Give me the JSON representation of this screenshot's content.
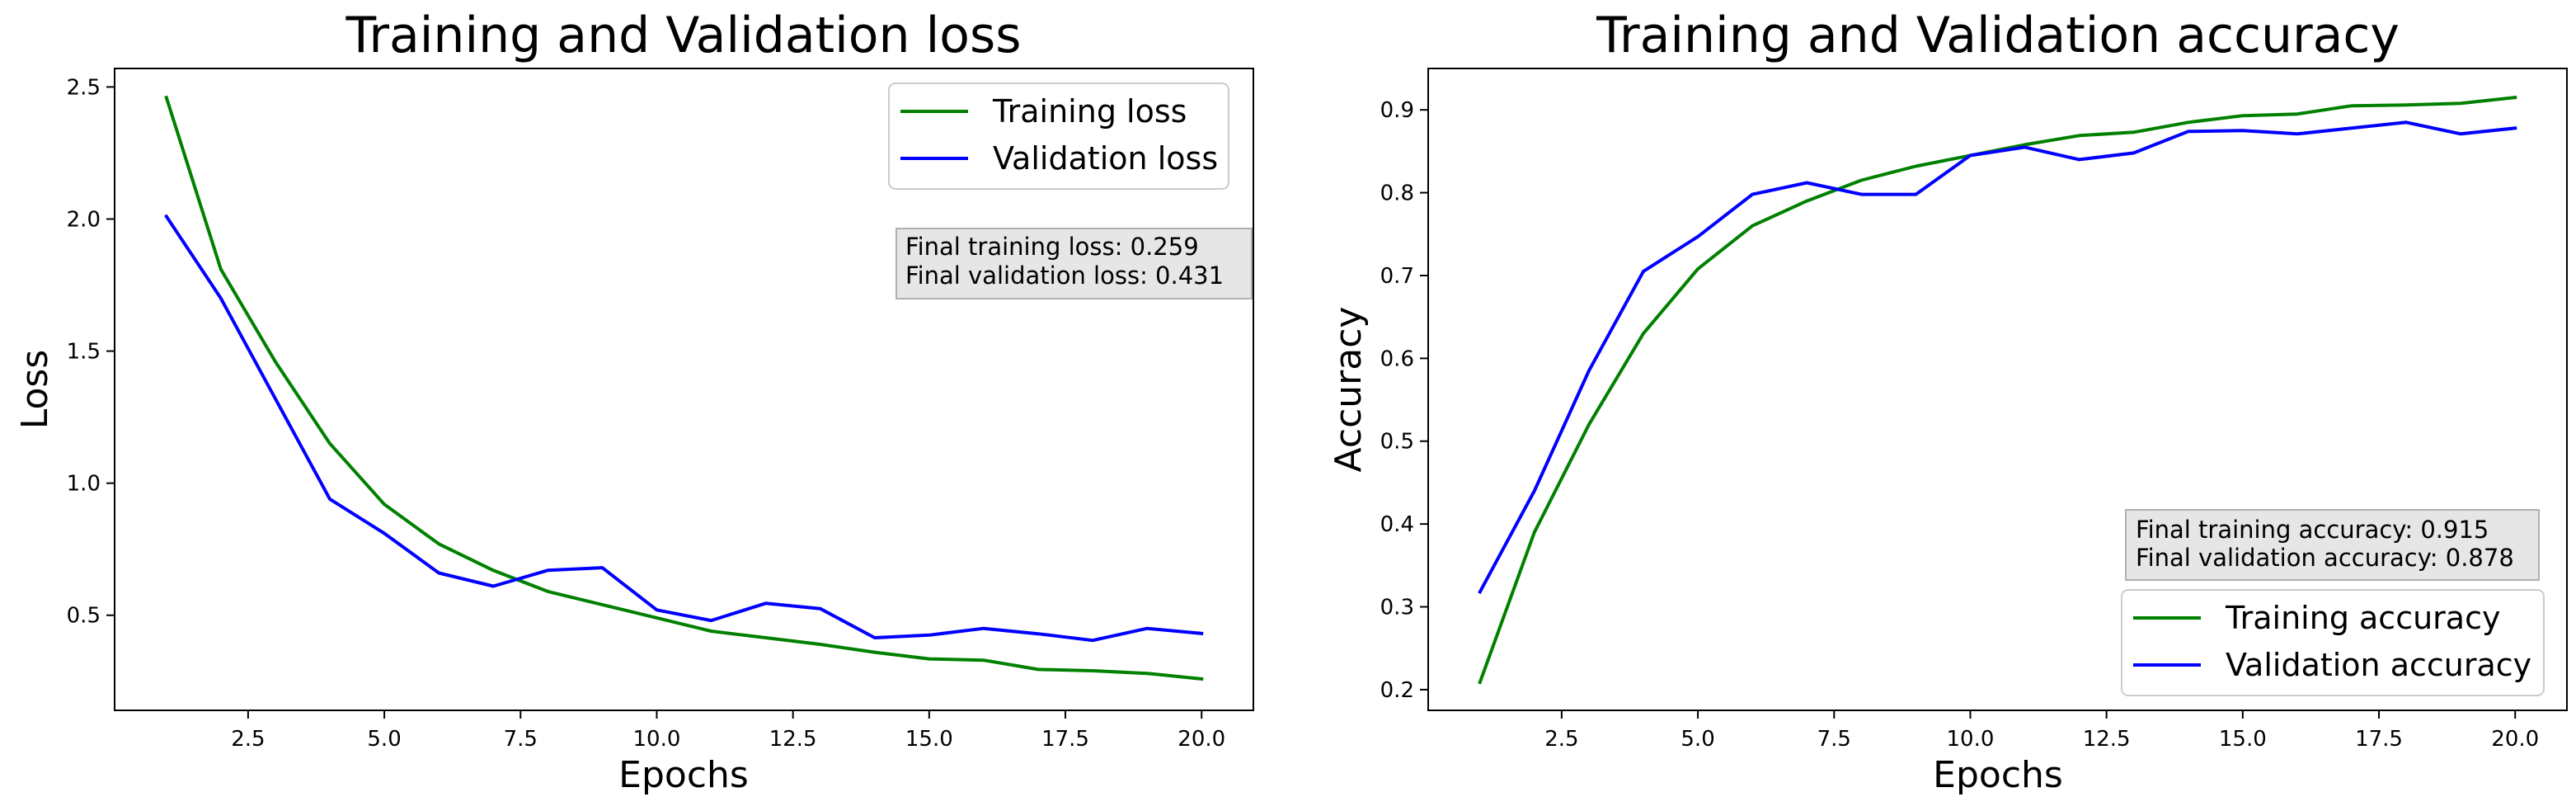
{
  "chart_data": [
    {
      "type": "line",
      "title": "Training and Validation loss",
      "xlabel": "Epochs",
      "ylabel": "Loss",
      "xlim": [
        0.05,
        20.95
      ],
      "ylim": [
        0.14,
        2.57
      ],
      "xticks": [
        2.5,
        5.0,
        7.5,
        10.0,
        12.5,
        15.0,
        17.5,
        20.0
      ],
      "yticks": [
        0.5,
        1.0,
        1.5,
        2.0,
        2.5
      ],
      "xtick_labels": [
        "2.5",
        "5.0",
        "7.5",
        "10.0",
        "12.5",
        "15.0",
        "17.5",
        "20.0"
      ],
      "ytick_labels": [
        "0.5",
        "1.0",
        "1.5",
        "2.0",
        "2.5"
      ],
      "x": [
        1,
        2,
        3,
        4,
        5,
        6,
        7,
        8,
        9,
        10,
        11,
        12,
        13,
        14,
        15,
        16,
        17,
        18,
        19,
        20
      ],
      "series": [
        {
          "name": "Training loss",
          "color": "#008000",
          "values": [
            2.46,
            1.81,
            1.46,
            1.15,
            0.92,
            0.77,
            0.67,
            0.59,
            0.54,
            0.49,
            0.44,
            0.415,
            0.39,
            0.36,
            0.335,
            0.33,
            0.295,
            0.29,
            0.28,
            0.259
          ]
        },
        {
          "name": "Validation loss",
          "color": "#0000ff",
          "values": [
            2.01,
            1.7,
            1.32,
            0.94,
            0.81,
            0.66,
            0.61,
            0.67,
            0.68,
            0.52,
            0.48,
            0.545,
            0.525,
            0.415,
            0.425,
            0.45,
            0.43,
            0.405,
            0.45,
            0.431
          ]
        }
      ],
      "legend_position": "upper right",
      "annotation": [
        "Final training loss: 0.259",
        "Final validation loss: 0.431"
      ],
      "annotation_position": "upper right, below legend",
      "grid": false
    },
    {
      "type": "line",
      "title": "Training and Validation accuracy",
      "xlabel": "Epochs",
      "ylabel": "Accuracy",
      "xlim": [
        0.05,
        20.95
      ],
      "ylim": [
        0.175,
        0.95
      ],
      "xticks": [
        2.5,
        5.0,
        7.5,
        10.0,
        12.5,
        15.0,
        17.5,
        20.0
      ],
      "yticks": [
        0.2,
        0.3,
        0.4,
        0.5,
        0.6,
        0.7,
        0.8,
        0.9
      ],
      "xtick_labels": [
        "2.5",
        "5.0",
        "7.5",
        "10.0",
        "12.5",
        "15.0",
        "17.5",
        "20.0"
      ],
      "ytick_labels": [
        "0.2",
        "0.3",
        "0.4",
        "0.5",
        "0.6",
        "0.7",
        "0.8",
        "0.9"
      ],
      "x": [
        1,
        2,
        3,
        4,
        5,
        6,
        7,
        8,
        9,
        10,
        11,
        12,
        13,
        14,
        15,
        16,
        17,
        18,
        19,
        20
      ],
      "series": [
        {
          "name": "Training accuracy",
          "color": "#008000",
          "values": [
            0.209,
            0.39,
            0.52,
            0.63,
            0.708,
            0.76,
            0.79,
            0.815,
            0.832,
            0.845,
            0.858,
            0.869,
            0.873,
            0.885,
            0.893,
            0.895,
            0.905,
            0.906,
            0.908,
            0.915
          ]
        },
        {
          "name": "Validation accuracy",
          "color": "#0000ff",
          "values": [
            0.318,
            0.44,
            0.585,
            0.705,
            0.747,
            0.798,
            0.812,
            0.798,
            0.798,
            0.845,
            0.855,
            0.84,
            0.848,
            0.874,
            0.875,
            0.871,
            0.878,
            0.885,
            0.871,
            0.878
          ]
        }
      ],
      "legend_position": "lower right",
      "annotation": [
        "Final training accuracy: 0.915",
        "Final validation accuracy: 0.878"
      ],
      "annotation_position": "lower right, above legend",
      "grid": false
    }
  ]
}
